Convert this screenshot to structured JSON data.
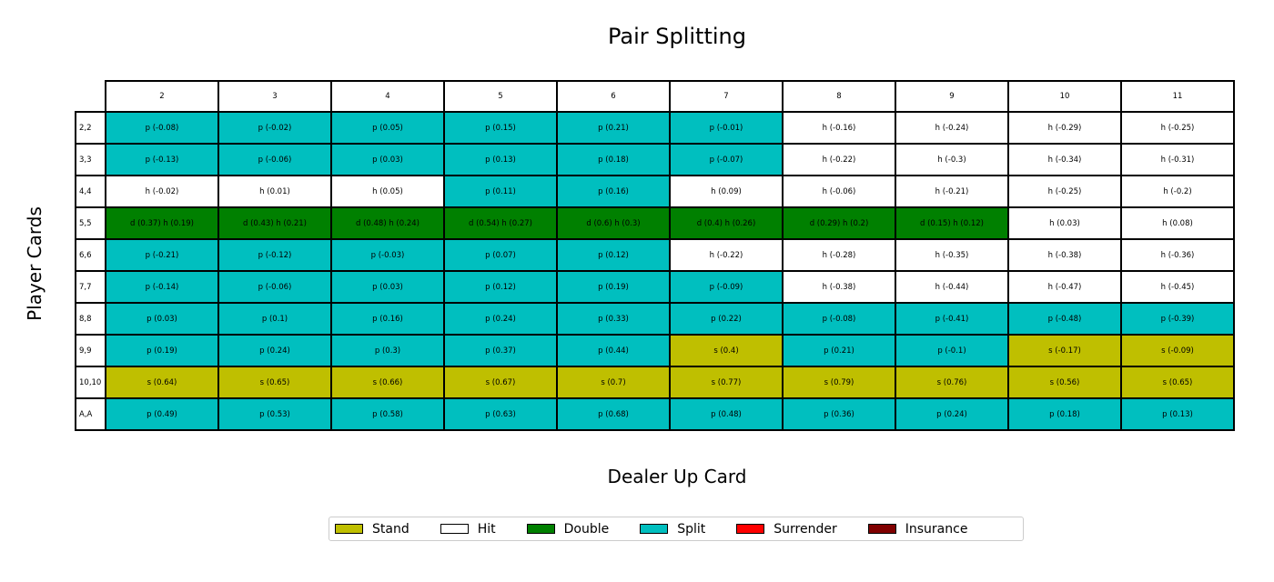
{
  "chart_data": {
    "type": "table",
    "title": "Pair Splitting",
    "xlabel": "Dealer Up Card",
    "ylabel": "Player Cards",
    "columns": [
      "2",
      "3",
      "4",
      "5",
      "6",
      "7",
      "8",
      "9",
      "10",
      "11"
    ],
    "rows": [
      {
        "label": "2,2",
        "cells": [
          {
            "text": "p (-0.08)",
            "action": "p"
          },
          {
            "text": "p (-0.02)",
            "action": "p"
          },
          {
            "text": "p (0.05)",
            "action": "p"
          },
          {
            "text": "p (0.15)",
            "action": "p"
          },
          {
            "text": "p (0.21)",
            "action": "p"
          },
          {
            "text": "p (-0.01)",
            "action": "p"
          },
          {
            "text": "h (-0.16)",
            "action": "h"
          },
          {
            "text": "h (-0.24)",
            "action": "h"
          },
          {
            "text": "h (-0.29)",
            "action": "h"
          },
          {
            "text": "h (-0.25)",
            "action": "h"
          }
        ]
      },
      {
        "label": "3,3",
        "cells": [
          {
            "text": "p (-0.13)",
            "action": "p"
          },
          {
            "text": "p (-0.06)",
            "action": "p"
          },
          {
            "text": "p (0.03)",
            "action": "p"
          },
          {
            "text": "p (0.13)",
            "action": "p"
          },
          {
            "text": "p (0.18)",
            "action": "p"
          },
          {
            "text": "p (-0.07)",
            "action": "p"
          },
          {
            "text": "h (-0.22)",
            "action": "h"
          },
          {
            "text": "h (-0.3)",
            "action": "h"
          },
          {
            "text": "h (-0.34)",
            "action": "h"
          },
          {
            "text": "h (-0.31)",
            "action": "h"
          }
        ]
      },
      {
        "label": "4,4",
        "cells": [
          {
            "text": "h (-0.02)",
            "action": "h"
          },
          {
            "text": "h (0.01)",
            "action": "h"
          },
          {
            "text": "h (0.05)",
            "action": "h"
          },
          {
            "text": "p (0.11)",
            "action": "p"
          },
          {
            "text": "p (0.16)",
            "action": "p"
          },
          {
            "text": "h (0.09)",
            "action": "h"
          },
          {
            "text": "h (-0.06)",
            "action": "h"
          },
          {
            "text": "h (-0.21)",
            "action": "h"
          },
          {
            "text": "h (-0.25)",
            "action": "h"
          },
          {
            "text": "h (-0.2)",
            "action": "h"
          }
        ]
      },
      {
        "label": "5,5",
        "cells": [
          {
            "text": "d (0.37) h (0.19)",
            "action": "d"
          },
          {
            "text": "d (0.43) h (0.21)",
            "action": "d"
          },
          {
            "text": "d (0.48) h (0.24)",
            "action": "d"
          },
          {
            "text": "d (0.54) h (0.27)",
            "action": "d"
          },
          {
            "text": "d (0.6) h (0.3)",
            "action": "d"
          },
          {
            "text": "d (0.4) h (0.26)",
            "action": "d"
          },
          {
            "text": "d (0.29) h (0.2)",
            "action": "d"
          },
          {
            "text": "d (0.15) h (0.12)",
            "action": "d"
          },
          {
            "text": "h (0.03)",
            "action": "h"
          },
          {
            "text": "h (0.08)",
            "action": "h"
          }
        ]
      },
      {
        "label": "6,6",
        "cells": [
          {
            "text": "p (-0.21)",
            "action": "p"
          },
          {
            "text": "p (-0.12)",
            "action": "p"
          },
          {
            "text": "p (-0.03)",
            "action": "p"
          },
          {
            "text": "p (0.07)",
            "action": "p"
          },
          {
            "text": "p (0.12)",
            "action": "p"
          },
          {
            "text": "h (-0.22)",
            "action": "h"
          },
          {
            "text": "h (-0.28)",
            "action": "h"
          },
          {
            "text": "h (-0.35)",
            "action": "h"
          },
          {
            "text": "h (-0.38)",
            "action": "h"
          },
          {
            "text": "h (-0.36)",
            "action": "h"
          }
        ]
      },
      {
        "label": "7,7",
        "cells": [
          {
            "text": "p (-0.14)",
            "action": "p"
          },
          {
            "text": "p (-0.06)",
            "action": "p"
          },
          {
            "text": "p (0.03)",
            "action": "p"
          },
          {
            "text": "p (0.12)",
            "action": "p"
          },
          {
            "text": "p (0.19)",
            "action": "p"
          },
          {
            "text": "p (-0.09)",
            "action": "p"
          },
          {
            "text": "h (-0.38)",
            "action": "h"
          },
          {
            "text": "h (-0.44)",
            "action": "h"
          },
          {
            "text": "h (-0.47)",
            "action": "h"
          },
          {
            "text": "h (-0.45)",
            "action": "h"
          }
        ]
      },
      {
        "label": "8,8",
        "cells": [
          {
            "text": "p (0.03)",
            "action": "p"
          },
          {
            "text": "p (0.1)",
            "action": "p"
          },
          {
            "text": "p (0.16)",
            "action": "p"
          },
          {
            "text": "p (0.24)",
            "action": "p"
          },
          {
            "text": "p (0.33)",
            "action": "p"
          },
          {
            "text": "p (0.22)",
            "action": "p"
          },
          {
            "text": "p (-0.08)",
            "action": "p"
          },
          {
            "text": "p (-0.41)",
            "action": "p"
          },
          {
            "text": "p (-0.48)",
            "action": "p"
          },
          {
            "text": "p (-0.39)",
            "action": "p"
          }
        ]
      },
      {
        "label": "9,9",
        "cells": [
          {
            "text": "p (0.19)",
            "action": "p"
          },
          {
            "text": "p (0.24)",
            "action": "p"
          },
          {
            "text": "p (0.3)",
            "action": "p"
          },
          {
            "text": "p (0.37)",
            "action": "p"
          },
          {
            "text": "p (0.44)",
            "action": "p"
          },
          {
            "text": "s (0.4)",
            "action": "s"
          },
          {
            "text": "p (0.21)",
            "action": "p"
          },
          {
            "text": "p (-0.1)",
            "action": "p"
          },
          {
            "text": "s (-0.17)",
            "action": "s"
          },
          {
            "text": "s (-0.09)",
            "action": "s"
          }
        ]
      },
      {
        "label": "10,10",
        "cells": [
          {
            "text": "s (0.64)",
            "action": "s"
          },
          {
            "text": "s (0.65)",
            "action": "s"
          },
          {
            "text": "s (0.66)",
            "action": "s"
          },
          {
            "text": "s (0.67)",
            "action": "s"
          },
          {
            "text": "s (0.7)",
            "action": "s"
          },
          {
            "text": "s (0.77)",
            "action": "s"
          },
          {
            "text": "s (0.79)",
            "action": "s"
          },
          {
            "text": "s (0.76)",
            "action": "s"
          },
          {
            "text": "s (0.56)",
            "action": "s"
          },
          {
            "text": "s (0.65)",
            "action": "s"
          }
        ]
      },
      {
        "label": "A,A",
        "cells": [
          {
            "text": "p (0.49)",
            "action": "p"
          },
          {
            "text": "p (0.53)",
            "action": "p"
          },
          {
            "text": "p (0.58)",
            "action": "p"
          },
          {
            "text": "p (0.63)",
            "action": "p"
          },
          {
            "text": "p (0.68)",
            "action": "p"
          },
          {
            "text": "p (0.48)",
            "action": "p"
          },
          {
            "text": "p (0.36)",
            "action": "p"
          },
          {
            "text": "p (0.24)",
            "action": "p"
          },
          {
            "text": "p (0.18)",
            "action": "p"
          },
          {
            "text": "p (0.13)",
            "action": "p"
          }
        ]
      }
    ],
    "action_colors": {
      "s": "#bfbf00",
      "h": "#ffffff",
      "d": "#008000",
      "p": "#00bfbf",
      "r": "#ff0000",
      "i": "#800000"
    },
    "legend_position": "bottom-center",
    "legend": [
      {
        "label": "Stand",
        "color": "#bfbf00"
      },
      {
        "label": "Hit",
        "color": "#ffffff"
      },
      {
        "label": "Double",
        "color": "#008000"
      },
      {
        "label": "Split",
        "color": "#00bfbf"
      },
      {
        "label": "Surrender",
        "color": "#ff0000"
      },
      {
        "label": "Insurance",
        "color": "#800000"
      }
    ]
  }
}
